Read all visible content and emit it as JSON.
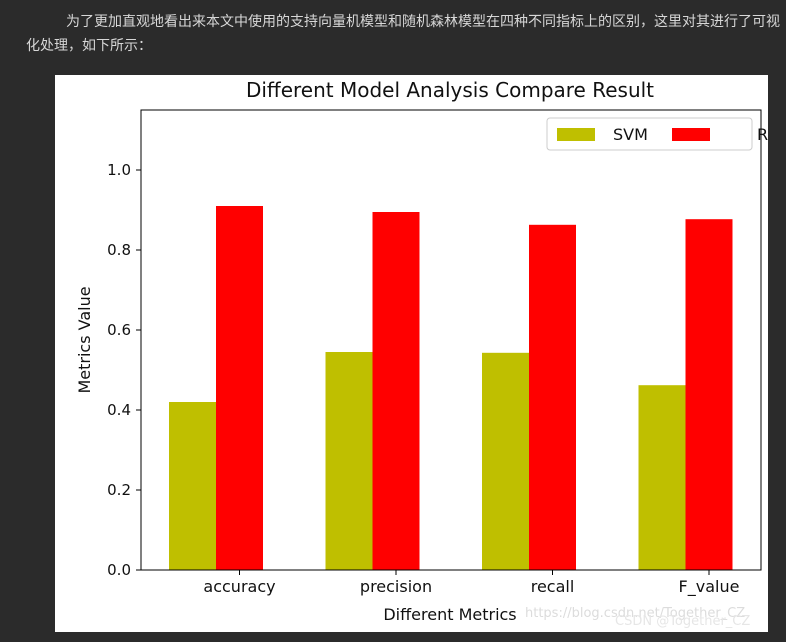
{
  "article": {
    "paragraph": "为了更加直观地看出来本文中使用的支持向量机模型和随机森林模型在四种不同指标上的区别，这里对其进行了可视化处理，如下所示："
  },
  "watermark": {
    "inside": "https://blog.csdn.net/Together_CZ",
    "footer": "CSDN @Together_CZ"
  },
  "chart_data": {
    "type": "bar",
    "title": "Different Model Analysis Compare Result",
    "xlabel": "Different Metrics",
    "ylabel": "Metrics Value",
    "categories": [
      "accuracy",
      "precision",
      "recall",
      "F_value"
    ],
    "series": [
      {
        "name": "SVM",
        "color": "#bfbf00",
        "values": [
          0.42,
          0.545,
          0.543,
          0.462
        ]
      },
      {
        "name": "RF",
        "color": "#ff0000",
        "values": [
          0.91,
          0.895,
          0.863,
          0.877
        ]
      }
    ],
    "ylim": [
      0,
      1.15
    ],
    "yticks": [
      "0.0",
      "0.2",
      "0.4",
      "0.6",
      "0.8",
      "1.0"
    ],
    "legend": "top-right",
    "grid": false
  }
}
